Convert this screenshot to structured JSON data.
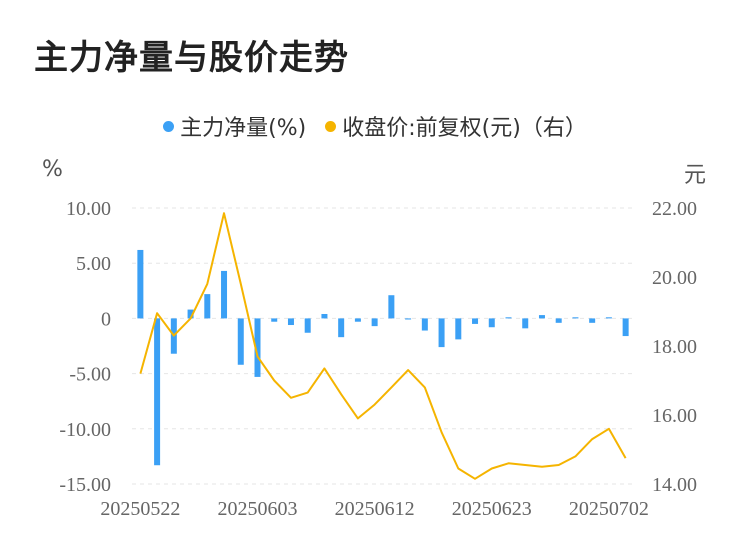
{
  "title": "主力净量与股价走势",
  "legend": {
    "series1": "主力净量(%)",
    "series2": "收盘价:前复权(元)（右）"
  },
  "units": {
    "left": "%",
    "right": "元"
  },
  "colors": {
    "bar": "#3ba0f5",
    "line": "#f5b400",
    "grid": "#e6e6e6"
  },
  "chart_data": {
    "type": "bar+line",
    "x_tick_labels": [
      "20250522",
      "20250603",
      "20250612",
      "20250623",
      "20250702"
    ],
    "x_tick_indices": [
      0,
      7,
      14,
      21,
      28
    ],
    "left_axis": {
      "ylim": [
        -15,
        10
      ],
      "ticks": [
        "10.00",
        "5.00",
        "0",
        "-5.00",
        "-10.00",
        "-15.00"
      ],
      "tick_values": [
        10,
        5,
        0,
        -5,
        -10,
        -15
      ]
    },
    "right_axis": {
      "ylim": [
        14,
        22
      ],
      "ticks": [
        "22.00",
        "20.00",
        "18.00",
        "16.00",
        "14.00"
      ],
      "tick_values": [
        22,
        20,
        18,
        16,
        14
      ]
    },
    "series": [
      {
        "name": "主力净量(%)",
        "type": "bar",
        "axis": "left",
        "values": [
          6.2,
          -13.3,
          -3.2,
          0.8,
          2.2,
          4.3,
          -4.2,
          -5.3,
          -0.3,
          -0.6,
          -1.3,
          0.4,
          -1.7,
          -0.3,
          -0.7,
          2.1,
          -0.1,
          -1.1,
          -2.6,
          -1.9,
          -0.5,
          -0.8,
          0.1,
          -0.9,
          0.3,
          -0.4,
          0.1,
          -0.4,
          0.1,
          -1.6
        ]
      },
      {
        "name": "收盘价:前复权(元)（右）",
        "type": "line",
        "axis": "right",
        "values": [
          17.2,
          18.95,
          18.3,
          18.8,
          19.8,
          21.85,
          19.8,
          17.7,
          17.0,
          16.5,
          16.65,
          17.35,
          16.6,
          15.9,
          16.3,
          16.8,
          17.3,
          16.8,
          15.5,
          14.45,
          14.15,
          14.45,
          14.6,
          14.55,
          14.5,
          14.55,
          14.8,
          15.3,
          15.6,
          14.75
        ]
      }
    ]
  }
}
